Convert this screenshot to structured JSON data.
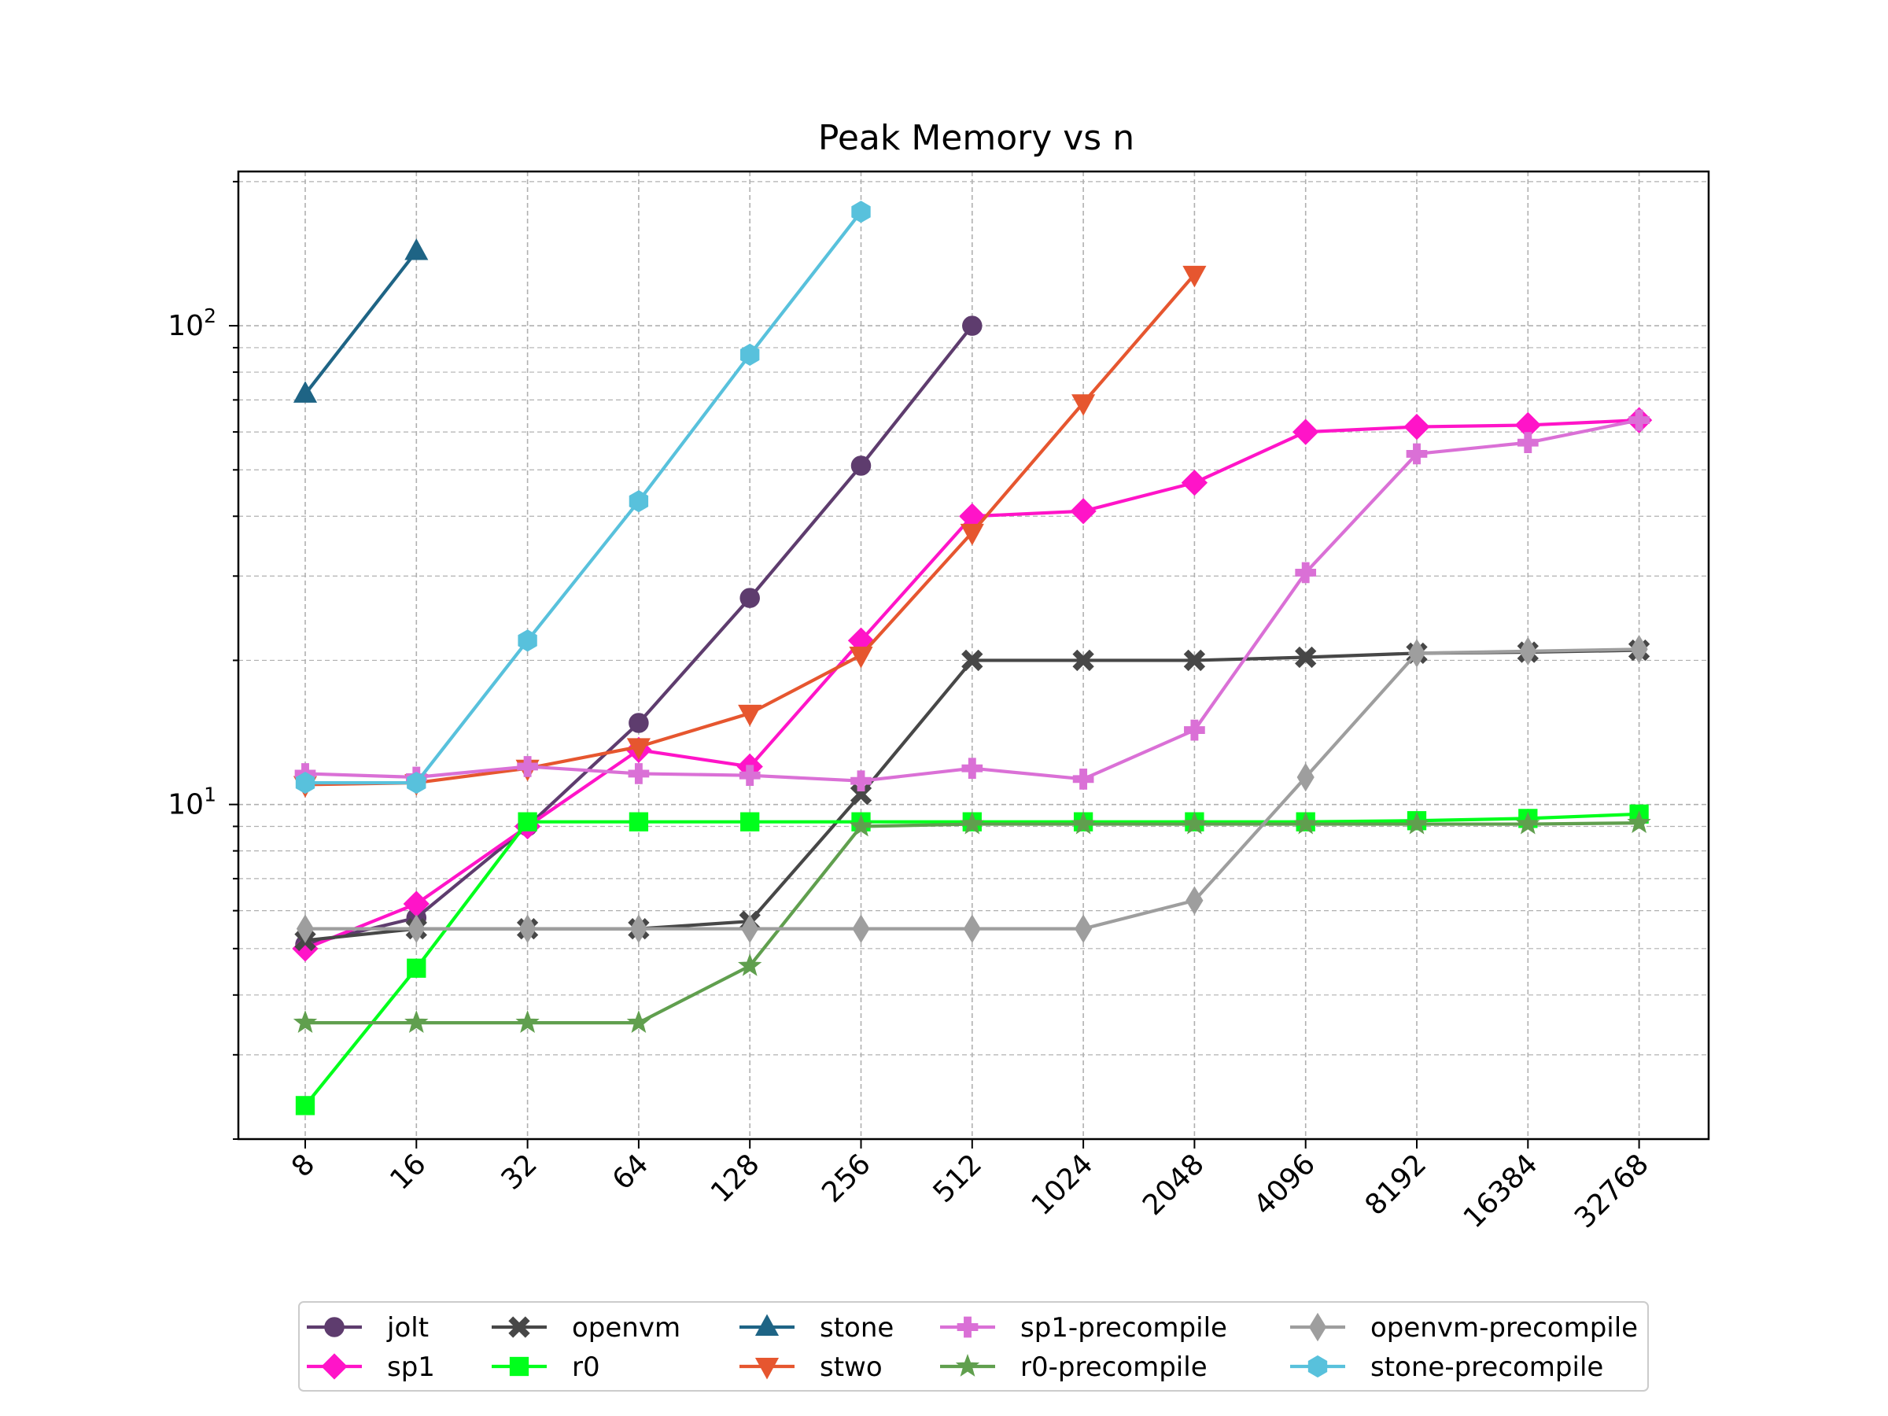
{
  "chart_data": {
    "type": "line",
    "title": "Peak Memory vs n",
    "xlabel": "",
    "ylabel": "",
    "y_scale": "log",
    "ylim": [
      2.0,
      210
    ],
    "grid": true,
    "legend_position": "bottom-center",
    "categories": [
      "8",
      "16",
      "32",
      "64",
      "128",
      "256",
      "512",
      "1024",
      "2048",
      "4096",
      "8192",
      "16384",
      "32768"
    ],
    "y_tick_labels": [
      {
        "value": 10,
        "base": "10",
        "exp": "1"
      },
      {
        "value": 100,
        "base": "10",
        "exp": "2"
      }
    ],
    "series": [
      {
        "name": "jolt",
        "color": "#5e3c6e",
        "marker": "circle",
        "values": [
          5.1,
          5.8,
          9.0,
          14.8,
          27.0,
          51.0,
          100.0,
          null,
          null,
          null,
          null,
          null,
          null
        ]
      },
      {
        "name": "sp1",
        "color": "#ff14c8",
        "marker": "diamond",
        "values": [
          5.0,
          6.2,
          9.0,
          13.0,
          12.0,
          22.0,
          40.0,
          41.0,
          47.0,
          60.0,
          61.5,
          62.0,
          63.5
        ]
      },
      {
        "name": "openvm",
        "color": "#474747",
        "marker": "x",
        "values": [
          5.2,
          5.5,
          5.5,
          5.5,
          5.7,
          10.5,
          20.0,
          20.0,
          20.0,
          20.3,
          20.7,
          20.8,
          21.0
        ]
      },
      {
        "name": "r0",
        "color": "#00ff1c",
        "marker": "square",
        "values": [
          2.35,
          4.55,
          9.2,
          9.2,
          9.2,
          9.2,
          9.2,
          9.2,
          9.2,
          9.2,
          9.25,
          9.35,
          9.55
        ]
      },
      {
        "name": "stone",
        "color": "#1e6485",
        "marker": "triangle-up",
        "values": [
          72.0,
          143.0,
          null,
          null,
          null,
          null,
          null,
          null,
          null,
          null,
          null,
          null,
          null
        ]
      },
      {
        "name": "stwo",
        "color": "#e6562f",
        "marker": "triangle-down",
        "values": [
          11.0,
          11.1,
          11.9,
          13.2,
          15.5,
          20.5,
          37.0,
          69.0,
          128.0,
          null,
          null,
          null,
          null
        ]
      },
      {
        "name": "sp1-precompile",
        "color": "#da70d6",
        "marker": "plus",
        "values": [
          11.6,
          11.4,
          12.0,
          11.6,
          11.5,
          11.2,
          11.9,
          11.3,
          14.3,
          30.5,
          54.0,
          57.0,
          63.5
        ]
      },
      {
        "name": "r0-precompile",
        "color": "#609f4e",
        "marker": "star",
        "values": [
          3.5,
          3.5,
          3.5,
          3.5,
          4.6,
          9.0,
          9.1,
          9.1,
          9.1,
          9.1,
          9.1,
          9.1,
          9.15
        ]
      },
      {
        "name": "openvm-precompile",
        "color": "#9e9e9e",
        "marker": "thin-diamond",
        "values": [
          5.5,
          5.5,
          5.5,
          5.5,
          5.5,
          5.5,
          5.5,
          5.5,
          6.3,
          11.4,
          20.7,
          20.9,
          21.1
        ]
      },
      {
        "name": "stone-precompile",
        "color": "#58c1dc",
        "marker": "hexagon",
        "values": [
          11.1,
          11.1,
          22.0,
          43.0,
          87.0,
          173.0,
          null,
          null,
          null,
          null,
          null,
          null,
          null
        ]
      }
    ]
  }
}
